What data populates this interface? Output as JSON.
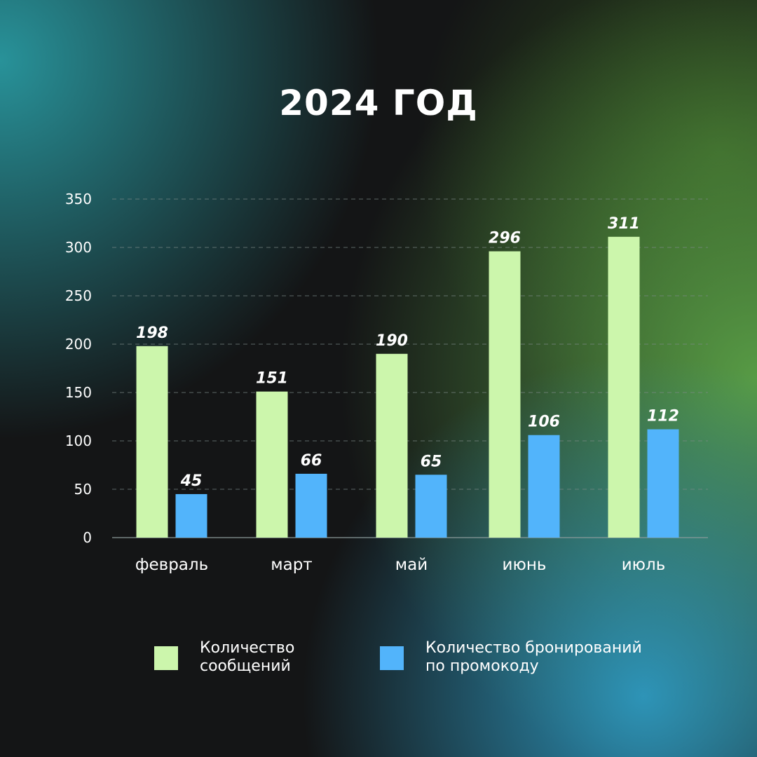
{
  "title": "2024 ГОД",
  "colors": {
    "background": "#141516",
    "series_messages": "#ccf6ac",
    "series_bookings": "#52b4fb"
  },
  "legend": [
    {
      "label": "Количество\nсообщений",
      "color": "#ccf6ac"
    },
    {
      "label": "Количество бронирований\nпо промокоду",
      "color": "#52b4fb"
    }
  ],
  "chart_data": {
    "type": "bar",
    "title": "2024 ГОД",
    "categories": [
      "февраль",
      "март",
      "май",
      "июнь",
      "июль"
    ],
    "series": [
      {
        "name": "Количество сообщений",
        "values": [
          198,
          151,
          190,
          296,
          311
        ],
        "color": "#ccf6ac"
      },
      {
        "name": "Количество бронирований по промокоду",
        "values": [
          45,
          66,
          65,
          106,
          112
        ],
        "color": "#52b4fb"
      }
    ],
    "yticks": [
      0,
      50,
      100,
      150,
      200,
      250,
      300,
      350
    ],
    "ylim": [
      0,
      350
    ],
    "grid": true,
    "legend_position": "bottom",
    "xlabel": "",
    "ylabel": ""
  }
}
